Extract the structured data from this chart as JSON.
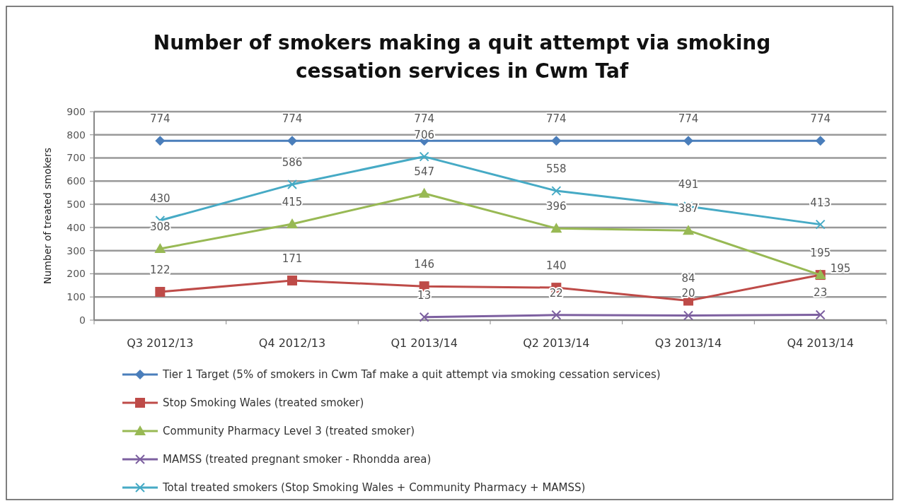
{
  "chart_data": {
    "type": "line",
    "title": "Number of smokers making a quit attempt via smoking cessation services in Cwm Taf",
    "ylabel": "Number of treated smokers",
    "categories": [
      "Q3 2012/13",
      "Q4 2012/13",
      "Q1 2013/14",
      "Q2 2013/14",
      "Q3 2013/14",
      "Q4 2013/14"
    ],
    "series": [
      {
        "name": "Tier 1 Target (5% of smokers in Cwm Taf make a quit attempt via smoking cessation services)",
        "color": "#4a7ebb",
        "marker": "diamond",
        "values": [
          774,
          774,
          774,
          774,
          774,
          774
        ]
      },
      {
        "name": "Stop Smoking Wales (treated smoker)",
        "color": "#be4b48",
        "marker": "square",
        "values": [
          122,
          171,
          146,
          140,
          84,
          195
        ]
      },
      {
        "name": "Community Pharmacy Level 3 (treated smoker)",
        "color": "#98b954",
        "marker": "triangle",
        "values": [
          308,
          415,
          547,
          396,
          387,
          195
        ]
      },
      {
        "name": "MAMSS (treated pregnant smoker - Rhondda area)",
        "color": "#7d60a0",
        "marker": "cross",
        "values": [
          null,
          null,
          13,
          22,
          20,
          23
        ]
      },
      {
        "name": "Total treated smokers (Stop Smoking Wales + Community Pharmacy + MAMSS)",
        "color": "#46aac5",
        "marker": "cross",
        "values": [
          430,
          586,
          706,
          558,
          491,
          413
        ]
      }
    ],
    "ylim": [
      0,
      900
    ],
    "yticks": [
      0,
      100,
      200,
      300,
      400,
      500,
      600,
      700,
      800,
      900
    ],
    "grid": "y",
    "legend": "bottom",
    "data_labels": true
  }
}
